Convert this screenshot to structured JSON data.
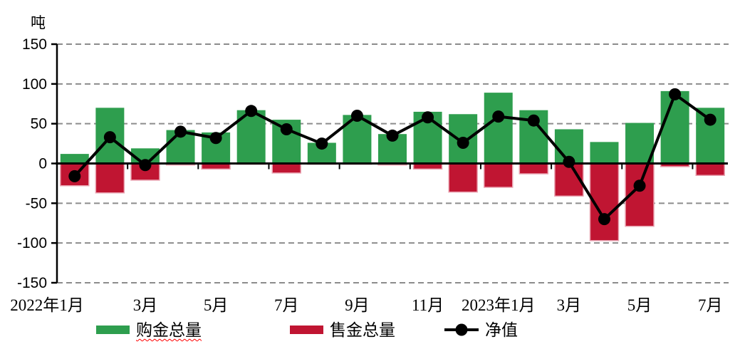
{
  "unit_label": "吨",
  "colors": {
    "buy_green": "#2E9E4E",
    "sell_red": "#C01532",
    "net_black": "#000000",
    "grid_gray": "#8C8C8C",
    "axis_black": "#000000",
    "sell_bar_border_pink": "#E9A3B1",
    "spellcheck_underline_red": "#FF0000"
  },
  "chart_data": {
    "type": "bar",
    "subtype": "combo-bar-line",
    "months_count": 19,
    "ylabel": "吨",
    "ylim": [
      -150,
      150
    ],
    "ytick_step": 50,
    "y_ticks": [
      150,
      100,
      50,
      0,
      -50,
      -100,
      -150
    ],
    "grid": "horizontal-dashed",
    "legend_position": "bottom",
    "x_tick_labels": [
      {
        "text": "2022年1月",
        "month": 0
      },
      {
        "text": "3月",
        "month": 2
      },
      {
        "text": "5月",
        "month": 4
      },
      {
        "text": "7月",
        "month": 6
      },
      {
        "text": "9月",
        "month": 8
      },
      {
        "text": "11月",
        "month": 10
      },
      {
        "text": "2023年1月",
        "month": 12
      },
      {
        "text": "3月",
        "month": 14
      },
      {
        "text": "5月",
        "month": 16
      },
      {
        "text": "7月",
        "month": 18
      }
    ],
    "series": [
      {
        "name": "购金总量",
        "type": "bar",
        "color": "#2E9E4E",
        "values": [
          12,
          70,
          19,
          42,
          39,
          67,
          55,
          26,
          61,
          37,
          65,
          62,
          89,
          67,
          43,
          27,
          51,
          91,
          70
        ]
      },
      {
        "name": "售金总量",
        "type": "bar",
        "color": "#C01532",
        "values": [
          -28,
          -37,
          -21,
          -2,
          -7,
          -1,
          -12,
          -1,
          -1,
          -2,
          -7,
          -36,
          -30,
          -13,
          -41,
          -97,
          -79,
          -4,
          -15
        ]
      },
      {
        "name": "净值",
        "type": "line",
        "color": "#000000",
        "values": [
          -16,
          33,
          -2,
          40,
          32,
          66,
          43,
          25,
          60,
          35,
          58,
          26,
          59,
          54,
          2,
          -70,
          -28,
          87,
          55
        ]
      }
    ]
  }
}
